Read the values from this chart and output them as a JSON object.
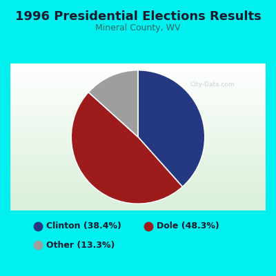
{
  "title": "1996 Presidential Elections Results",
  "subtitle": "Mineral County, WV",
  "slices": [
    {
      "label": "Clinton",
      "pct": 38.4,
      "color": "#253882"
    },
    {
      "label": "Dole",
      "pct": 48.3,
      "color": "#9e1b1b"
    },
    {
      "label": "Other",
      "pct": 13.3,
      "color": "#9e9e9e"
    }
  ],
  "legend_labels": [
    "Clinton (38.4%)",
    "Dole (48.3%)",
    "Other (13.3%)"
  ],
  "legend_colors": [
    "#253882",
    "#9e1b1b",
    "#9e9e9e"
  ],
  "title_fontsize": 13,
  "subtitle_fontsize": 9,
  "bg_outer": "#00efef",
  "bg_inner_top": "#ffffff",
  "bg_inner_bottom": "#ddeedd",
  "watermark": "City-Data.com",
  "title_color": "#1a1a2e",
  "subtitle_color": "#336666"
}
